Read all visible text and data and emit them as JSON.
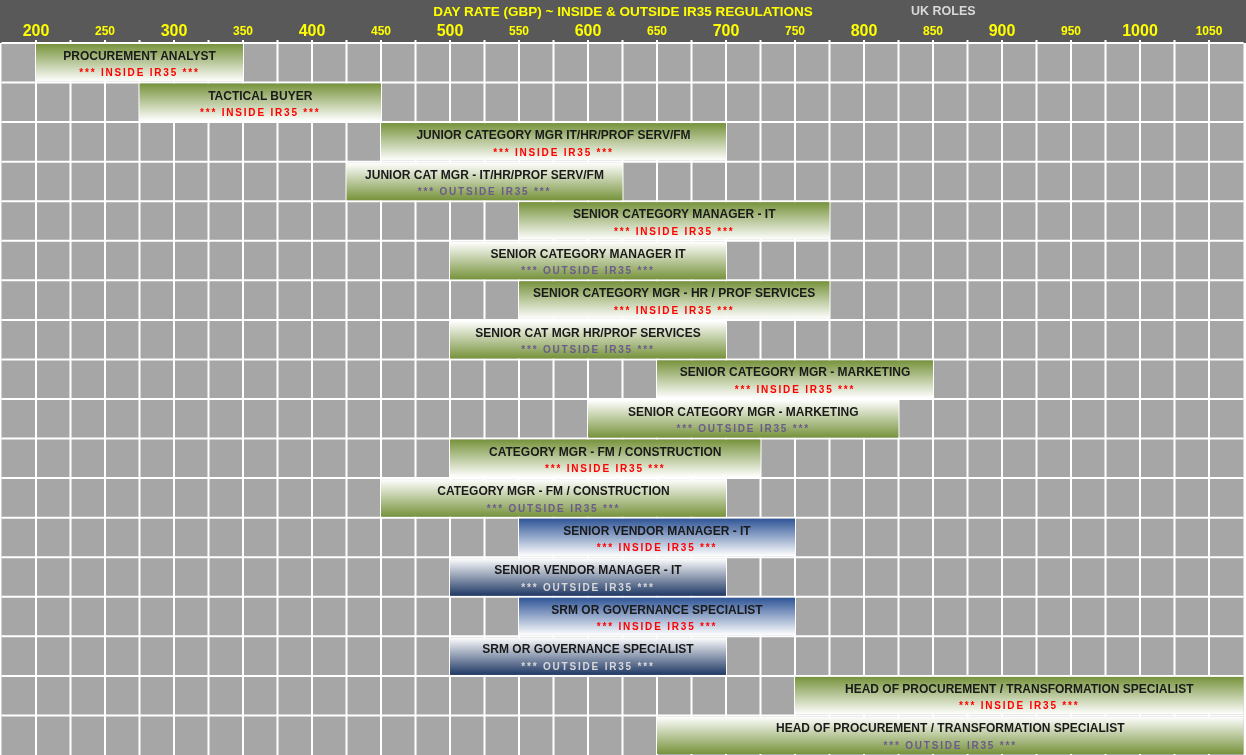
{
  "chart_data": {
    "type": "bar",
    "orientation": "horizontal",
    "title": "DAY RATE (GBP) ~ INSIDE & OUTSIDE IR35 REGULATIONS",
    "subtitle": "UK ROLES",
    "categories": [
      "PROCUREMENT ANALYST",
      "TACTICAL BUYER",
      "JUNIOR CATEGORY MGR IT/HR/PROF SERV/FM",
      "JUNIOR CAT MGR - IT/HR/PROF SERV/FM",
      "SENIOR CATEGORY MANAGER - IT",
      "SENIOR CATEGORY MANAGER IT",
      "SENIOR CATEGORY MGR - HR / PROF SERVICES",
      "SENIOR CAT MGR HR/PROF SERVICES",
      "SENIOR CATEGORY MGR - MARKETING",
      "SENIOR CATEGORY MGR - MARKETING",
      "CATEGORY MGR - FM / CONSTRUCTION",
      "CATEGORY MGR - FM / CONSTRUCTION",
      "SENIOR VENDOR MANAGER - IT",
      "SENIOR VENDOR MANAGER - IT",
      "SRM OR GOVERNANCE SPECIALIST",
      "SRM OR GOVERNANCE SPECIALIST",
      "HEAD OF PROCUREMENT / TRANSFORMATION SPECIALIST",
      "HEAD OF PROCUREMENT / TRANSFORMATION SPECIALIST"
    ],
    "series": [
      {
        "values": [
          150,
          175,
          250,
          null,
          225,
          null,
          225,
          null,
          200,
          null,
          225,
          null,
          200,
          null,
          200,
          null,
          325,
          null
        ],
        "base": [
          200,
          275,
          450,
          null,
          550,
          null,
          550,
          null,
          650,
          null,
          500,
          null,
          550,
          null,
          550,
          null,
          750,
          null
        ],
        "colors": [
          "#77933c",
          "#77933c",
          "#77933c",
          null,
          "#77933c",
          null,
          "#77933c",
          null,
          "#77933c",
          null,
          "#77933c",
          null,
          "#2f5597",
          null,
          "#2f5597",
          null,
          "#77933c",
          null
        ],
        "value_labels": [
          "*** INSIDE IR35 ***",
          "*** INSIDE IR35 ***",
          "*** INSIDE IR35 ***",
          null,
          "*** INSIDE IR35 ***",
          null,
          "*** INSIDE IR35 ***",
          null,
          "*** INSIDE IR35 ***",
          null,
          "*** INSIDE IR35 ***",
          null,
          "*** INSIDE IR35 ***",
          null,
          "*** INSIDE IR35 ***",
          null,
          "*** INSIDE IR35 ***",
          null
        ]
      },
      {
        "values": [
          null,
          null,
          null,
          200,
          null,
          200,
          null,
          200,
          null,
          225,
          null,
          250,
          null,
          200,
          null,
          200,
          null,
          425
        ],
        "base": [
          null,
          null,
          null,
          425,
          null,
          500,
          null,
          500,
          null,
          600,
          null,
          450,
          null,
          500,
          null,
          500,
          null,
          650
        ],
        "colors": [
          null,
          null,
          null,
          "#77933c",
          null,
          "#77933c",
          null,
          "#77933c",
          null,
          "#77933c",
          null,
          "#77933c",
          null,
          "#1f3864",
          null,
          "#1f3864",
          null,
          "#77933c"
        ],
        "value_labels": [
          null,
          null,
          null,
          "*** OUTSIDE IR35 ***",
          null,
          "*** OUTSIDE IR35 ***",
          null,
          "*** OUTSIDE IR35 ***",
          null,
          "*** OUTSIDE IR35 ***",
          null,
          "*** OUTSIDE IR35 ***",
          null,
          "*** OUTSIDE IR35 ***",
          null,
          "*** OUTSIDE IR35 ***",
          null,
          "*** OUTSIDE IR35 ***"
        ]
      }
    ],
    "xlim": [
      175,
      1075
    ],
    "xticks": [
      200,
      {
        "value": 225,
        "label": null
      },
      250,
      {
        "value": 275,
        "label": null
      },
      300,
      {
        "value": 325,
        "label": null
      },
      350,
      {
        "value": 375,
        "label": null
      },
      400,
      {
        "value": 425,
        "label": null
      },
      450,
      {
        "value": 475,
        "label": null
      },
      500,
      {
        "value": 525,
        "label": null
      },
      550,
      {
        "value": 575,
        "label": null
      },
      600,
      {
        "value": 625,
        "label": null
      },
      650,
      {
        "value": 675,
        "label": null
      },
      700,
      {
        "value": 725,
        "label": null
      },
      750,
      {
        "value": 775,
        "label": null
      },
      800,
      {
        "value": 825,
        "label": null
      },
      850,
      {
        "value": 875,
        "label": null
      },
      900,
      {
        "value": 925,
        "label": null
      },
      950,
      {
        "value": 975,
        "label": null
      },
      1000,
      {
        "value": 1025,
        "label": null
      },
      1050
    ],
    "grid": true
  }
}
